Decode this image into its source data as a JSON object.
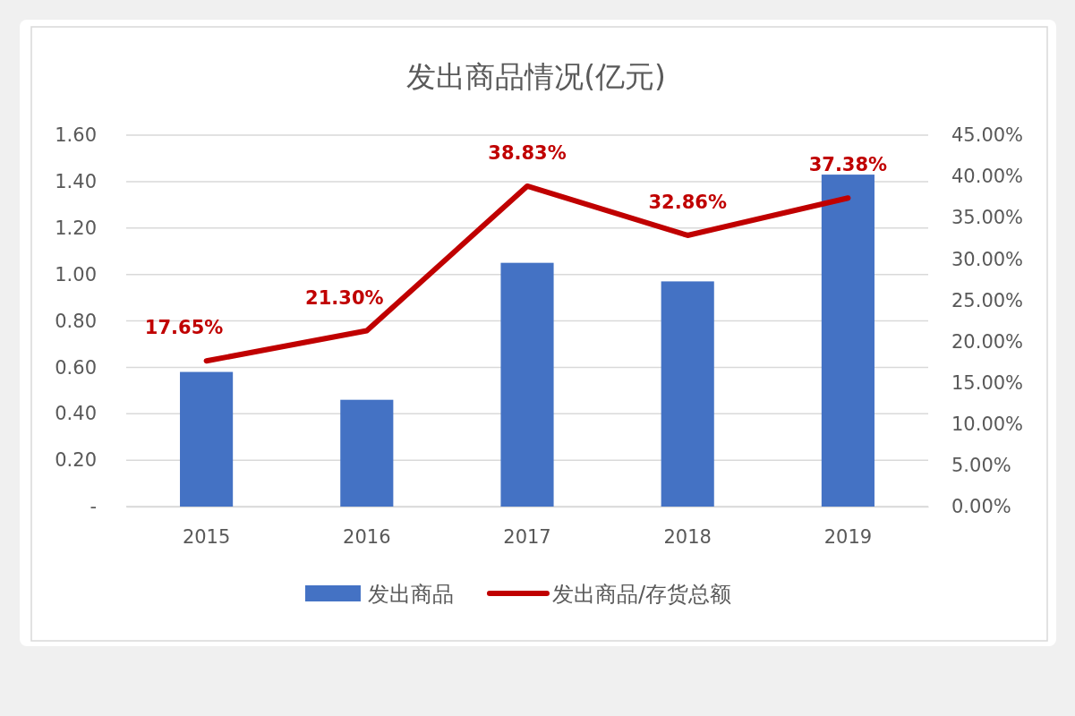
{
  "chart_data": {
    "type": "bar",
    "title": "发出商品情况(亿元)",
    "categories": [
      "2015",
      "2016",
      "2017",
      "2018",
      "2019"
    ],
    "series": [
      {
        "name": "发出商品",
        "color": "#4472c4",
        "values": [
          0.58,
          0.46,
          1.05,
          0.97,
          1.43
        ]
      },
      {
        "name": "发出商品/存货总额",
        "type": "line",
        "color": "#c00000",
        "axis": "y2",
        "values": [
          17.65,
          21.3,
          38.83,
          32.86,
          37.38
        ],
        "value_labels": [
          "17.65%",
          "21.30%",
          "38.83%",
          "32.86%",
          "37.38%"
        ]
      }
    ],
    "ylim": [
      0,
      1.6
    ],
    "yticks": [
      {
        "value": 0,
        "label": "-"
      },
      {
        "value": 0.2,
        "label": "0.20"
      },
      {
        "value": 0.4,
        "label": "0.40"
      },
      {
        "value": 0.6,
        "label": "0.60"
      },
      {
        "value": 0.8,
        "label": "0.80"
      },
      {
        "value": 1.0,
        "label": "1.00"
      },
      {
        "value": 1.2,
        "label": "1.20"
      },
      {
        "value": 1.4,
        "label": "1.40"
      },
      {
        "value": 1.6,
        "label": "1.60"
      }
    ],
    "y2lim": [
      0,
      45
    ],
    "y2ticks": [
      {
        "value": 0,
        "label": "0.00%"
      },
      {
        "value": 5,
        "label": "5.00%"
      },
      {
        "value": 10,
        "label": "10.00%"
      },
      {
        "value": 15,
        "label": "15.00%"
      },
      {
        "value": 20,
        "label": "20.00%"
      },
      {
        "value": 25,
        "label": "25.00%"
      },
      {
        "value": 30,
        "label": "30.00%"
      },
      {
        "value": 35,
        "label": "35.00%"
      },
      {
        "value": 40,
        "label": "40.00%"
      },
      {
        "value": 45,
        "label": "45.00%"
      }
    ],
    "grid": "y",
    "legend": "bottom"
  }
}
